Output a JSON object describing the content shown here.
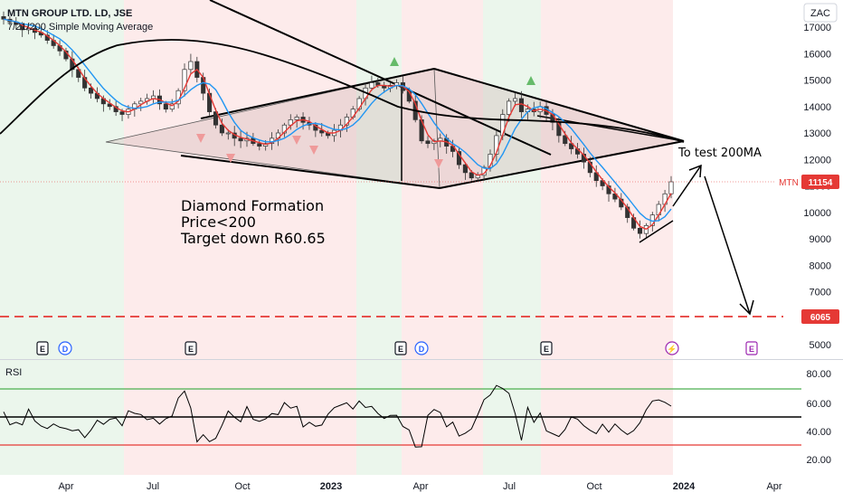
{
  "chart_data": {
    "type": "candlestick",
    "legend": {
      "title": "MTN GROUP LTD. LD, JSE",
      "indicators": "7/21/200 Simple Moving Average"
    },
    "currency": "ZAC",
    "price_axis": {
      "ticks": [
        17000,
        16000,
        15000,
        14000,
        13000,
        12000,
        11000,
        10000,
        9000,
        8000,
        7000,
        5000
      ]
    },
    "rsi_axis": {
      "ticks": [
        "80.00",
        "60.00",
        "40.00",
        "20.00"
      ],
      "label": "RSI",
      "upper": 70,
      "middle": 50,
      "lower": 30
    },
    "time_axis": [
      "Apr",
      "Jul",
      "Oct",
      "2023",
      "Apr",
      "Jul",
      "Oct",
      "2024",
      "Apr"
    ],
    "last_price": {
      "symbol": "MTN",
      "value": "11154"
    },
    "target": {
      "value": "6065"
    },
    "annotations": {
      "pattern": "Diamond Formation",
      "condition": "Price<200",
      "target_text": "Target down R60.65",
      "test_note": "To test 200MA"
    },
    "events": [
      "E",
      "D",
      "E",
      "E",
      "D",
      "E",
      "⚡",
      "E"
    ],
    "close": [
      17300,
      17200,
      17100,
      16900,
      16950,
      16800,
      16700,
      16500,
      16300,
      16100,
      15800,
      15400,
      15100,
      14700,
      14500,
      14300,
      14100,
      14000,
      13800,
      13700,
      13900,
      14100,
      14200,
      14300,
      14400,
      14100,
      13900,
      14100,
      14600,
      15400,
      15700,
      15100,
      14500,
      13800,
      13300,
      13000,
      13000,
      12800,
      12700,
      12800,
      12600,
      12500,
      12600,
      12800,
      13000,
      13300,
      13500,
      13600,
      13400,
      13300,
      13100,
      13000,
      12900,
      13100,
      13300,
      13600,
      13900,
      14300,
      14700,
      14900,
      14800,
      14700,
      14800,
      14900,
      14600,
      14200,
      13500,
      12700,
      12600,
      12700,
      12800,
      12500,
      12300,
      11800,
      11500,
      11300,
      11400,
      11700,
      12200,
      12900,
      13700,
      14200,
      14300,
      13800,
      13900,
      13800,
      14000,
      13700,
      13400,
      12900,
      12600,
      12400,
      12200,
      11900,
      11500,
      11200,
      11000,
      10700,
      10500,
      10200,
      9800,
      9400,
      9200,
      9500,
      9900,
      10300,
      10700,
      11154
    ]
  }
}
